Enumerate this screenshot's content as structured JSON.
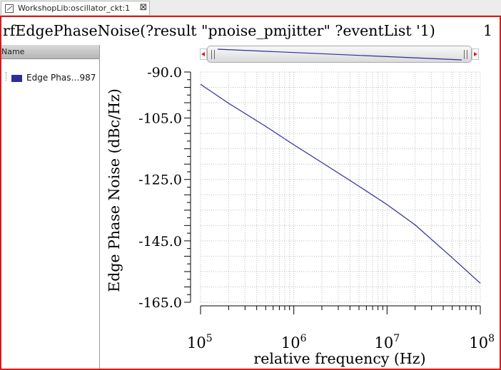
{
  "tab": {
    "title": "WorkshopLib:oscillator_ckt:1",
    "close_symbol": "⊠"
  },
  "window": {
    "title": "rfEdgePhaseNoise(?result \"pnoise_pmjitter\" ?eventList '1)",
    "subwindow_number": "1"
  },
  "legend": {
    "header": "Name",
    "items": [
      {
        "label": "Edge Phas…987",
        "color": "#2e2e9a"
      }
    ]
  },
  "colors": {
    "accent": "#d81b1b",
    "trace": "#2e2e9a"
  },
  "chart_data": {
    "type": "line",
    "xscale": "log",
    "xlabel": "relative frequency (Hz)",
    "ylabel": "Edge Phase Noise (dBc/Hz)",
    "xlim": [
      100000,
      100000000
    ],
    "ylim": [
      -165,
      -90
    ],
    "x_ticks": [
      {
        "base": "10",
        "exp": "5",
        "value": 100000
      },
      {
        "base": "10",
        "exp": "6",
        "value": 1000000
      },
      {
        "base": "10",
        "exp": "7",
        "value": 10000000
      },
      {
        "base": "10",
        "exp": "8",
        "value": 100000000
      }
    ],
    "y_ticks": [
      {
        "label": "-90.0",
        "value": -90
      },
      {
        "label": "-105.0",
        "value": -105
      },
      {
        "label": "-125.0",
        "value": -125
      },
      {
        "label": "-145.0",
        "value": -145
      },
      {
        "label": "-165.0",
        "value": -165
      }
    ],
    "grid": true,
    "series": [
      {
        "name": "Edge Phas…987",
        "x": [
          100000,
          200000,
          500000,
          1000000,
          2000000,
          5000000,
          10000000,
          20000000,
          50000000,
          100000000
        ],
        "y": [
          -94,
          -100.2,
          -107.7,
          -113.7,
          -119.5,
          -127.2,
          -133.2,
          -139.8,
          -150.5,
          -158.8
        ]
      }
    ]
  }
}
